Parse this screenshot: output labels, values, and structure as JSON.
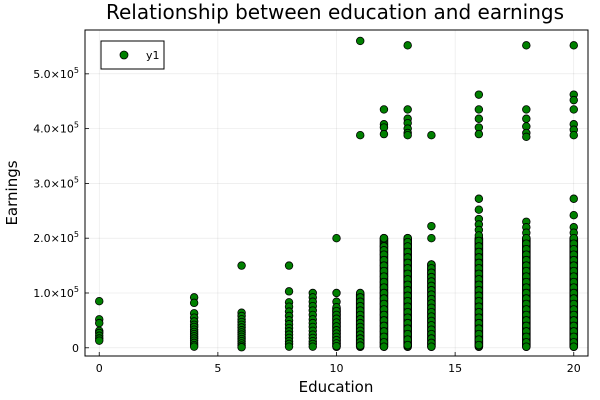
{
  "chart_data": {
    "type": "scatter",
    "title": "Relationship between education and earnings",
    "xlabel": "Education",
    "ylabel": "Earnings",
    "xlim": [
      -0.6,
      20.6
    ],
    "ylim": [
      -15000,
      580000
    ],
    "x_ticks": [
      0,
      5,
      10,
      15,
      20
    ],
    "x_tick_labels": [
      "0",
      "5",
      "10",
      "15",
      "20"
    ],
    "y_ticks": [
      0,
      100000,
      200000,
      300000,
      400000,
      500000
    ],
    "y_tick_mantissas": [
      "0",
      "1.0×10",
      "2.0×10",
      "3.0×10",
      "4.0×10",
      "5.0×10"
    ],
    "y_tick_exponents": [
      "",
      "5",
      "5",
      "5",
      "5",
      "5"
    ],
    "grid": true,
    "legend_position": "top-left",
    "marker_color": "#008000",
    "marker_edge_color": "#000000",
    "series": [
      {
        "name": "y1",
        "points": [
          [
            0,
            85000
          ],
          [
            0,
            52000
          ],
          [
            0,
            45000
          ],
          [
            0,
            31000
          ],
          [
            0,
            27000
          ],
          [
            0,
            22000
          ],
          [
            0,
            17000
          ],
          [
            0,
            13000
          ],
          [
            4,
            92000
          ],
          [
            4,
            82000
          ],
          [
            4,
            63000
          ],
          [
            4,
            55000
          ],
          [
            4,
            48000
          ],
          [
            4,
            42000
          ],
          [
            4,
            38000
          ],
          [
            4,
            33000
          ],
          [
            4,
            29000
          ],
          [
            4,
            25000
          ],
          [
            4,
            21000
          ],
          [
            4,
            17000
          ],
          [
            4,
            13000
          ],
          [
            4,
            9000
          ],
          [
            4,
            5000
          ],
          [
            4,
            2000
          ],
          [
            6,
            150000
          ],
          [
            6,
            64000
          ],
          [
            6,
            58000
          ],
          [
            6,
            52000
          ],
          [
            6,
            47000
          ],
          [
            6,
            42000
          ],
          [
            6,
            37000
          ],
          [
            6,
            32000
          ],
          [
            6,
            28000
          ],
          [
            6,
            24000
          ],
          [
            6,
            20000
          ],
          [
            6,
            16000
          ],
          [
            6,
            12000
          ],
          [
            6,
            8000
          ],
          [
            6,
            4000
          ],
          [
            6,
            1000
          ],
          [
            8,
            150000
          ],
          [
            8,
            103000
          ],
          [
            8,
            83000
          ],
          [
            8,
            75000
          ],
          [
            8,
            66000
          ],
          [
            8,
            58000
          ],
          [
            8,
            50000
          ],
          [
            8,
            43000
          ],
          [
            8,
            36000
          ],
          [
            8,
            30000
          ],
          [
            8,
            24000
          ],
          [
            8,
            18000
          ],
          [
            8,
            12000
          ],
          [
            8,
            7000
          ],
          [
            8,
            2000
          ],
          [
            9,
            100000
          ],
          [
            9,
            92000
          ],
          [
            9,
            84000
          ],
          [
            9,
            76000
          ],
          [
            9,
            68000
          ],
          [
            9,
            60000
          ],
          [
            9,
            52000
          ],
          [
            9,
            45000
          ],
          [
            9,
            38000
          ],
          [
            9,
            31000
          ],
          [
            9,
            24000
          ],
          [
            9,
            18000
          ],
          [
            9,
            12000
          ],
          [
            9,
            7000
          ],
          [
            9,
            2000
          ],
          [
            10,
            200000
          ],
          [
            10,
            100000
          ],
          [
            10,
            84000
          ],
          [
            10,
            74000
          ],
          [
            10,
            67000
          ],
          [
            10,
            60000
          ],
          [
            10,
            53000
          ],
          [
            10,
            46000
          ],
          [
            10,
            39000
          ],
          [
            10,
            32000
          ],
          [
            10,
            26000
          ],
          [
            10,
            20000
          ],
          [
            10,
            14000
          ],
          [
            10,
            8000
          ],
          [
            10,
            3000
          ],
          [
            11,
            560000
          ],
          [
            11,
            388000
          ],
          [
            11,
            100000
          ],
          [
            11,
            92000
          ],
          [
            11,
            84000
          ],
          [
            11,
            76000
          ],
          [
            11,
            68000
          ],
          [
            11,
            60000
          ],
          [
            11,
            52000
          ],
          [
            11,
            45000
          ],
          [
            11,
            38000
          ],
          [
            11,
            31000
          ],
          [
            11,
            24000
          ],
          [
            11,
            17000
          ],
          [
            11,
            10000
          ],
          [
            11,
            4000
          ],
          [
            12,
            435000
          ],
          [
            12,
            408000
          ],
          [
            12,
            402000
          ],
          [
            12,
            390000
          ],
          [
            12,
            200000
          ],
          [
            12,
            185000
          ],
          [
            12,
            178000
          ],
          [
            12,
            170000
          ],
          [
            12,
            160000
          ],
          [
            12,
            150000
          ],
          [
            12,
            140000
          ],
          [
            12,
            130000
          ],
          [
            12,
            120000
          ],
          [
            12,
            110000
          ],
          [
            12,
            100000
          ],
          [
            12,
            90000
          ],
          [
            12,
            80000
          ],
          [
            12,
            70000
          ],
          [
            12,
            60000
          ],
          [
            12,
            50000
          ],
          [
            12,
            40000
          ],
          [
            12,
            30000
          ],
          [
            12,
            20000
          ],
          [
            12,
            10000
          ],
          [
            12,
            2000
          ],
          [
            13,
            552000
          ],
          [
            13,
            435000
          ],
          [
            13,
            418000
          ],
          [
            13,
            410000
          ],
          [
            13,
            400000
          ],
          [
            13,
            392000
          ],
          [
            13,
            388000
          ],
          [
            13,
            200000
          ],
          [
            13,
            193000
          ],
          [
            13,
            185000
          ],
          [
            13,
            175000
          ],
          [
            13,
            165000
          ],
          [
            13,
            155000
          ],
          [
            13,
            145000
          ],
          [
            13,
            135000
          ],
          [
            13,
            125000
          ],
          [
            13,
            115000
          ],
          [
            13,
            105000
          ],
          [
            13,
            95000
          ],
          [
            13,
            85000
          ],
          [
            13,
            75000
          ],
          [
            13,
            65000
          ],
          [
            13,
            55000
          ],
          [
            13,
            45000
          ],
          [
            13,
            35000
          ],
          [
            13,
            25000
          ],
          [
            13,
            15000
          ],
          [
            13,
            5000
          ],
          [
            14,
            388000
          ],
          [
            14,
            222000
          ],
          [
            14,
            200000
          ],
          [
            14,
            152000
          ],
          [
            14,
            145000
          ],
          [
            14,
            137000
          ],
          [
            14,
            129000
          ],
          [
            14,
            121000
          ],
          [
            14,
            113000
          ],
          [
            14,
            105000
          ],
          [
            14,
            97000
          ],
          [
            14,
            89000
          ],
          [
            14,
            81000
          ],
          [
            14,
            73000
          ],
          [
            14,
            65000
          ],
          [
            14,
            57000
          ],
          [
            14,
            49000
          ],
          [
            14,
            41000
          ],
          [
            14,
            33000
          ],
          [
            14,
            25000
          ],
          [
            14,
            17000
          ],
          [
            14,
            9000
          ],
          [
            14,
            2000
          ],
          [
            16,
            462000
          ],
          [
            16,
            435000
          ],
          [
            16,
            418000
          ],
          [
            16,
            402000
          ],
          [
            16,
            390000
          ],
          [
            16,
            272000
          ],
          [
            16,
            252000
          ],
          [
            16,
            235000
          ],
          [
            16,
            225000
          ],
          [
            16,
            215000
          ],
          [
            16,
            205000
          ],
          [
            16,
            195000
          ],
          [
            16,
            185000
          ],
          [
            16,
            175000
          ],
          [
            16,
            165000
          ],
          [
            16,
            155000
          ],
          [
            16,
            145000
          ],
          [
            16,
            135000
          ],
          [
            16,
            125000
          ],
          [
            16,
            115000
          ],
          [
            16,
            105000
          ],
          [
            16,
            95000
          ],
          [
            16,
            85000
          ],
          [
            16,
            75000
          ],
          [
            16,
            65000
          ],
          [
            16,
            55000
          ],
          [
            16,
            45000
          ],
          [
            16,
            35000
          ],
          [
            16,
            25000
          ],
          [
            16,
            15000
          ],
          [
            16,
            5000
          ],
          [
            18,
            552000
          ],
          [
            18,
            435000
          ],
          [
            18,
            418000
          ],
          [
            18,
            404000
          ],
          [
            18,
            392000
          ],
          [
            18,
            385000
          ],
          [
            18,
            230000
          ],
          [
            18,
            220000
          ],
          [
            18,
            210000
          ],
          [
            18,
            200000
          ],
          [
            18,
            190000
          ],
          [
            18,
            180000
          ],
          [
            18,
            170000
          ],
          [
            18,
            160000
          ],
          [
            18,
            150000
          ],
          [
            18,
            140000
          ],
          [
            18,
            130000
          ],
          [
            18,
            120000
          ],
          [
            18,
            110000
          ],
          [
            18,
            100000
          ],
          [
            18,
            90000
          ],
          [
            18,
            80000
          ],
          [
            18,
            70000
          ],
          [
            18,
            60000
          ],
          [
            18,
            50000
          ],
          [
            18,
            40000
          ],
          [
            18,
            30000
          ],
          [
            18,
            20000
          ],
          [
            18,
            10000
          ],
          [
            18,
            2000
          ],
          [
            20,
            552000
          ],
          [
            20,
            462000
          ],
          [
            20,
            452000
          ],
          [
            20,
            435000
          ],
          [
            20,
            408000
          ],
          [
            20,
            398000
          ],
          [
            20,
            388000
          ],
          [
            20,
            272000
          ],
          [
            20,
            242000
          ],
          [
            20,
            220000
          ],
          [
            20,
            210000
          ],
          [
            20,
            200000
          ],
          [
            20,
            190000
          ],
          [
            20,
            180000
          ],
          [
            20,
            170000
          ],
          [
            20,
            160000
          ],
          [
            20,
            150000
          ],
          [
            20,
            140000
          ],
          [
            20,
            130000
          ],
          [
            20,
            120000
          ],
          [
            20,
            110000
          ],
          [
            20,
            100000
          ],
          [
            20,
            90000
          ],
          [
            20,
            80000
          ],
          [
            20,
            70000
          ],
          [
            20,
            60000
          ],
          [
            20,
            50000
          ],
          [
            20,
            40000
          ],
          [
            20,
            30000
          ],
          [
            20,
            20000
          ],
          [
            20,
            10000
          ],
          [
            20,
            2000
          ]
        ],
        "dense_columns": [
          {
            "x": 10,
            "from": 2000,
            "to": 72000
          },
          {
            "x": 11,
            "from": 2000,
            "to": 98000
          },
          {
            "x": 12,
            "from": 2000,
            "to": 200000
          },
          {
            "x": 13,
            "from": 2000,
            "to": 200000
          },
          {
            "x": 14,
            "from": 2000,
            "to": 152000
          },
          {
            "x": 16,
            "from": 2000,
            "to": 200000
          },
          {
            "x": 18,
            "from": 2000,
            "to": 200000
          },
          {
            "x": 20,
            "from": 2000,
            "to": 200000
          }
        ]
      }
    ]
  }
}
